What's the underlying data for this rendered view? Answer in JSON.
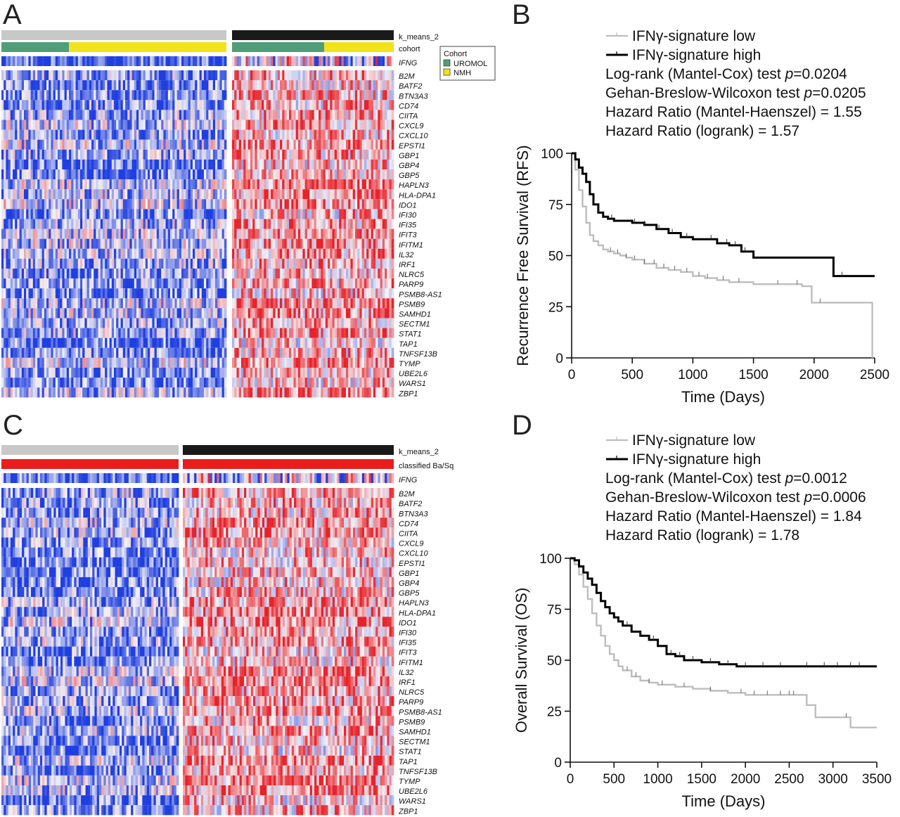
{
  "panels": {
    "A": "A",
    "B": "B",
    "C": "C",
    "D": "D"
  },
  "colors": {
    "low": "#1f3fe0",
    "mid": "#f4f1f4",
    "high": "#e8222a",
    "kmeans_low": "#c8c8c8",
    "kmeans_high": "#1a1a1a",
    "uromol": "#4f9e78",
    "nmh": "#f2e21a",
    "basq": "#ea1c1c",
    "km_low": "#bdbdbd",
    "km_high": "#000000"
  },
  "chart_data": [
    {
      "type": "heatmap",
      "panel": "A",
      "tracks": [
        "k_means_2",
        "cohort",
        "IFNG"
      ],
      "rows": [
        "B2M",
        "BATF2",
        "BTN3A3",
        "CD74",
        "CIITA",
        "CXCL9",
        "CXCL10",
        "EPSTI1",
        "GBP1",
        "GBP4",
        "GBP5",
        "HAPLN3",
        "HLA-DPA1",
        "IDO1",
        "IFI30",
        "IFI35",
        "IFIT3",
        "IFITM1",
        "IL32",
        "IRF1",
        "NLRC5",
        "PARP9",
        "PSMB8-AS1",
        "PSMB9",
        "SAMHD1",
        "SECTM1",
        "STAT1",
        "TAP1",
        "TNFSF13B",
        "TYMP",
        "UBE2L6",
        "WARS1",
        "ZBP1"
      ],
      "groups": [
        {
          "k_means": "low",
          "cohort_split": [
            0.3,
            "UROMOL",
            "NMH"
          ]
        },
        {
          "k_means": "high",
          "cohort_split": [
            0.57,
            "UROMOL",
            "NMH"
          ]
        }
      ],
      "legend": {
        "title": "Cohort",
        "entries": [
          "UROMOL",
          "NMH"
        ]
      }
    },
    {
      "type": "heatmap",
      "panel": "C",
      "tracks": [
        "k_means_2",
        "classified Ba/Sq",
        "IFNG"
      ],
      "rows": [
        "B2M",
        "BATF2",
        "BTN3A3",
        "CD74",
        "CIITA",
        "CXCL9",
        "CXCL10",
        "EPSTI1",
        "GBP1",
        "GBP4",
        "GBP5",
        "HAPLN3",
        "HLA-DPA1",
        "IDO1",
        "IFI30",
        "IFI35",
        "IFIT3",
        "IFITM1",
        "IL32",
        "IRF1",
        "NLRC5",
        "PARP9",
        "PSMB8-AS1",
        "PSMB9",
        "SAMHD1",
        "SECTM1",
        "STAT1",
        "TAP1",
        "TNFSF13B",
        "TYMP",
        "UBE2L6",
        "WARS1",
        "ZBP1"
      ],
      "groups": [
        {
          "k_means": "low"
        },
        {
          "k_means": "high"
        }
      ]
    },
    {
      "type": "line",
      "panel": "B",
      "ylabel": "Recurrence Free Survival (RFS)",
      "xlabel": "Time (Days)",
      "xlim": [
        0,
        2500
      ],
      "ylim": [
        0,
        100
      ],
      "xticks": [
        0,
        500,
        1000,
        1500,
        2000,
        2500
      ],
      "yticks": [
        0,
        25,
        50,
        75,
        100
      ],
      "legend": [
        "IFNγ-signature low",
        "IFNγ-signature high"
      ],
      "stats": [
        {
          "pre": "Log-rank (Mantel-Cox) test ",
          "p": "p",
          "post": "=0.0204"
        },
        {
          "pre": "Gehan-Breslow-Wilcoxon test ",
          "p": "p",
          "post": "=0.0205"
        },
        {
          "pre": "Hazard Ratio (Mantel-Haenszel) = 1.55",
          "p": "",
          "post": ""
        },
        {
          "pre": "Hazard Ratio (logrank) = 1.57",
          "p": "",
          "post": ""
        }
      ],
      "series": [
        {
          "name": "IFNγ-signature low",
          "x": [
            0,
            30,
            60,
            90,
            120,
            150,
            180,
            220,
            260,
            300,
            350,
            400,
            450,
            500,
            600,
            700,
            800,
            900,
            1000,
            1100,
            1200,
            1300,
            1400,
            1500,
            1700,
            1900,
            1980,
            2200,
            2450,
            2480
          ],
          "y": [
            100,
            92,
            82,
            74,
            66,
            60,
            57,
            55,
            53,
            52,
            51,
            50,
            49,
            48,
            46,
            44,
            43,
            42,
            40,
            39,
            38,
            37,
            37,
            36,
            36,
            35,
            27,
            27,
            27,
            0
          ],
          "censors": [
            320,
            380,
            450,
            520,
            600,
            680,
            760,
            850,
            950,
            1050,
            1120,
            1250,
            1380,
            1700,
            1860,
            2050
          ]
        },
        {
          "name": "IFNγ-signature high",
          "x": [
            0,
            30,
            60,
            90,
            120,
            150,
            180,
            220,
            260,
            300,
            350,
            400,
            500,
            600,
            700,
            800,
            900,
            1000,
            1100,
            1200,
            1300,
            1400,
            1500,
            1800,
            2000,
            2160,
            2500
          ],
          "y": [
            100,
            97,
            93,
            90,
            86,
            80,
            75,
            71,
            69,
            68,
            67,
            67,
            66,
            65,
            63,
            61,
            59,
            58,
            58,
            56,
            55,
            52,
            49,
            49,
            49,
            40,
            40
          ],
          "censors": [
            330,
            520,
            600,
            720,
            830,
            950,
            1150,
            1280,
            1350,
            1400,
            1430,
            2230
          ]
        }
      ]
    },
    {
      "type": "line",
      "panel": "D",
      "ylabel": "Overall Survival (OS)",
      "xlabel": "Time (Days)",
      "xlim": [
        0,
        3500
      ],
      "ylim": [
        0,
        100
      ],
      "xticks": [
        0,
        500,
        1000,
        1500,
        2000,
        2500,
        3000,
        3500
      ],
      "yticks": [
        0,
        25,
        50,
        75,
        100
      ],
      "legend": [
        "IFNγ-signature low",
        "IFNγ-signature high"
      ],
      "stats": [
        {
          "pre": "Log-rank (Mantel-Cox) test ",
          "p": "p",
          "post": "=0.0012"
        },
        {
          "pre": "Gehan-Breslow-Wilcoxon test ",
          "p": "p",
          "post": "=0.0006"
        },
        {
          "pre": "Hazard Ratio (Mantel-Haenszel) = 1.84",
          "p": "",
          "post": ""
        },
        {
          "pre": "Hazard Ratio (logrank) = 1.78",
          "p": "",
          "post": ""
        }
      ],
      "series": [
        {
          "name": "IFNγ-signature low",
          "x": [
            0,
            50,
            100,
            150,
            200,
            250,
            300,
            350,
            400,
            450,
            500,
            550,
            600,
            700,
            800,
            900,
            1000,
            1200,
            1400,
            1600,
            1800,
            2000,
            2300,
            2600,
            2700,
            2800,
            3100,
            3200,
            3500
          ],
          "y": [
            100,
            97,
            92,
            86,
            80,
            73,
            67,
            62,
            57,
            53,
            50,
            47,
            45,
            42,
            40,
            39,
            38,
            37,
            36,
            35,
            34,
            33,
            33,
            33,
            28,
            22,
            22,
            17,
            17
          ],
          "censors": [
            650,
            750,
            900,
            1050,
            1300,
            1600,
            1950,
            2100,
            2250,
            2400,
            2500,
            2550,
            3150
          ]
        },
        {
          "name": "IFNγ-signature high",
          "x": [
            0,
            50,
            100,
            150,
            200,
            250,
            300,
            350,
            400,
            450,
            500,
            550,
            600,
            700,
            800,
            900,
            1000,
            1100,
            1200,
            1300,
            1500,
            1700,
            1900,
            2100,
            2500,
            3000,
            3500
          ],
          "y": [
            100,
            99,
            96,
            93,
            90,
            87,
            83,
            79,
            76,
            73,
            71,
            69,
            67,
            64,
            62,
            60,
            57,
            53,
            52,
            50,
            49,
            48,
            47,
            47,
            47,
            47,
            47
          ],
          "censors": [
            650,
            800,
            950,
            1150,
            1250,
            1400,
            1600,
            1800,
            2000,
            2200,
            2400,
            2700,
            2900,
            3050,
            3200,
            3300
          ]
        }
      ]
    }
  ]
}
